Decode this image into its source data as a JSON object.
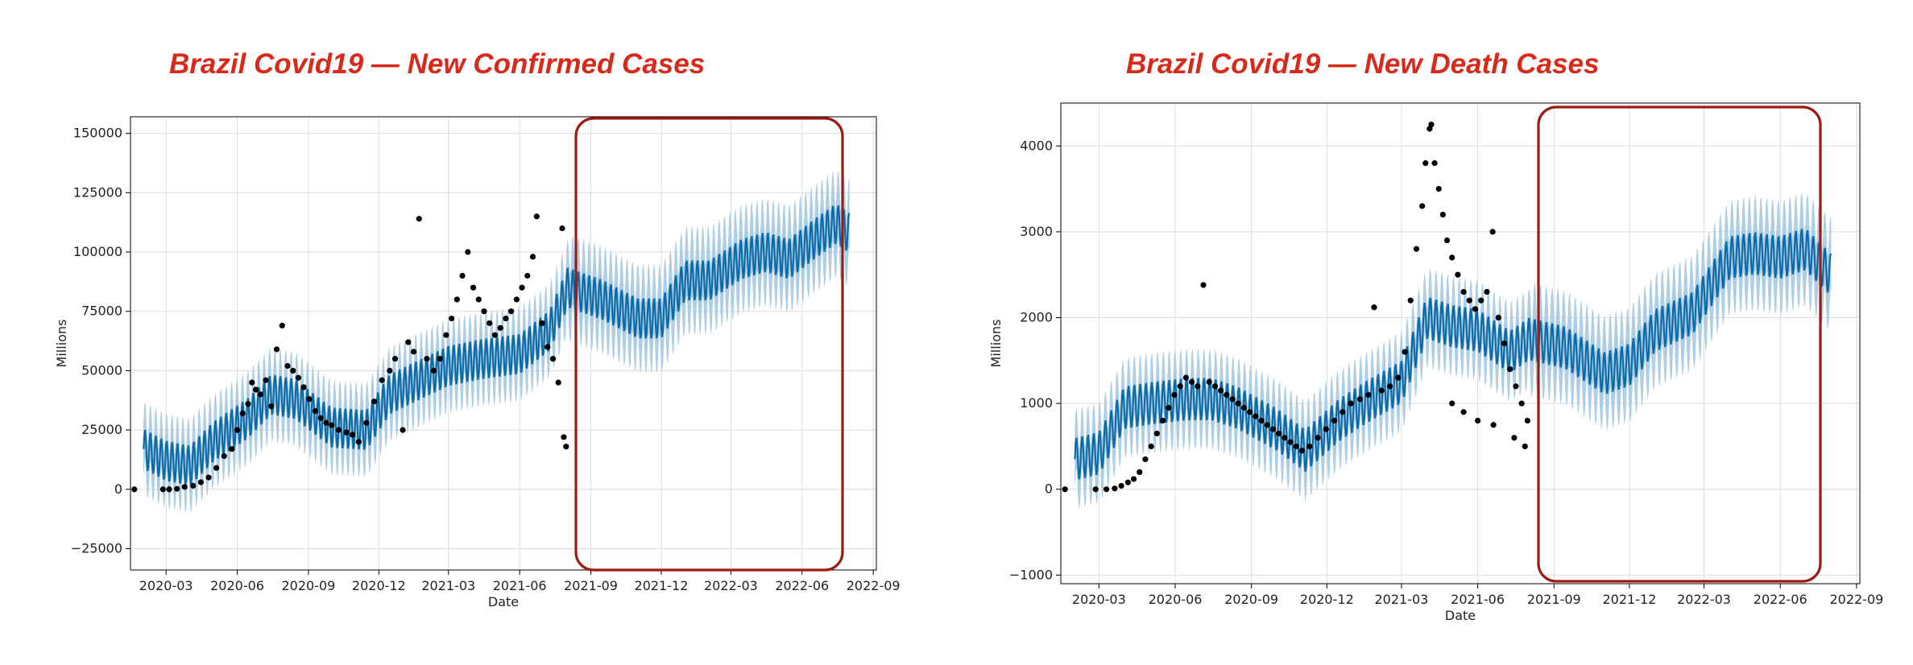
{
  "colors": {
    "title": "#d72a1a",
    "band": "#a9cbe6",
    "line": "#0b6aa6",
    "points": "#000000",
    "highlight": "#9b1c12",
    "grid": "#dcdcdc"
  },
  "chart_data": [
    {
      "type": "line",
      "title": "Brazil Covid19 — New Confirmed Cases",
      "xlabel": "Date",
      "ylabel": "Millions",
      "x_range": [
        "2020-01-15",
        "2022-09-05"
      ],
      "ylim": [
        -34000,
        157000
      ],
      "xticks": [
        "2020-03",
        "2020-06",
        "2020-09",
        "2020-12",
        "2021-03",
        "2021-06",
        "2021-09",
        "2021-12",
        "2022-03",
        "2022-06",
        "2022-09"
      ],
      "yticks": [
        -25000,
        0,
        25000,
        50000,
        75000,
        100000,
        125000,
        150000
      ],
      "ytick_labels": [
        "−25000",
        "0",
        "25000",
        "50000",
        "75000",
        "100000",
        "125000",
        "150000"
      ],
      "grid": true,
      "forecast_region": [
        "2021-08-02",
        "2022-08-01"
      ],
      "trend": [
        {
          "date": "2020-02-01",
          "value": 17000
        },
        {
          "date": "2020-03-01",
          "value": 12000
        },
        {
          "date": "2020-04-01",
          "value": 10000
        },
        {
          "date": "2020-05-01",
          "value": 20000
        },
        {
          "date": "2020-06-15",
          "value": 30000
        },
        {
          "date": "2020-07-15",
          "value": 40000
        },
        {
          "date": "2020-08-15",
          "value": 38000
        },
        {
          "date": "2020-10-01",
          "value": 26000
        },
        {
          "date": "2020-11-15",
          "value": 25000
        },
        {
          "date": "2020-12-15",
          "value": 40000
        },
        {
          "date": "2021-01-15",
          "value": 45000
        },
        {
          "date": "2021-03-01",
          "value": 52000
        },
        {
          "date": "2021-04-15",
          "value": 55000
        },
        {
          "date": "2021-06-01",
          "value": 57000
        },
        {
          "date": "2021-07-10",
          "value": 67000
        },
        {
          "date": "2021-08-02",
          "value": 85000
        },
        {
          "date": "2021-09-15",
          "value": 80000
        },
        {
          "date": "2021-11-01",
          "value": 72000
        },
        {
          "date": "2021-12-01",
          "value": 72000
        },
        {
          "date": "2022-01-01",
          "value": 88000
        },
        {
          "date": "2022-02-01",
          "value": 88000
        },
        {
          "date": "2022-03-15",
          "value": 97000
        },
        {
          "date": "2022-04-15",
          "value": 100000
        },
        {
          "date": "2022-05-15",
          "value": 97000
        },
        {
          "date": "2022-06-15",
          "value": 105000
        },
        {
          "date": "2022-07-15",
          "value": 112000
        },
        {
          "date": "2022-08-01",
          "value": 108000
        }
      ],
      "observed": [
        {
          "date": "2020-01-20",
          "value": 0
        },
        {
          "date": "2020-02-26",
          "value": 0
        },
        {
          "date": "2020-03-05",
          "value": 0
        },
        {
          "date": "2020-03-15",
          "value": 200
        },
        {
          "date": "2020-03-25",
          "value": 1000
        },
        {
          "date": "2020-04-05",
          "value": 1500
        },
        {
          "date": "2020-04-15",
          "value": 3000
        },
        {
          "date": "2020-04-25",
          "value": 5000
        },
        {
          "date": "2020-05-05",
          "value": 9000
        },
        {
          "date": "2020-05-15",
          "value": 14000
        },
        {
          "date": "2020-05-25",
          "value": 17000
        },
        {
          "date": "2020-06-01",
          "value": 25000
        },
        {
          "date": "2020-06-08",
          "value": 32000
        },
        {
          "date": "2020-06-15",
          "value": 36000
        },
        {
          "date": "2020-06-20",
          "value": 45000
        },
        {
          "date": "2020-06-25",
          "value": 42000
        },
        {
          "date": "2020-07-01",
          "value": 40000
        },
        {
          "date": "2020-07-08",
          "value": 46000
        },
        {
          "date": "2020-07-15",
          "value": 35000
        },
        {
          "date": "2020-07-22",
          "value": 59000
        },
        {
          "date": "2020-07-29",
          "value": 69000
        },
        {
          "date": "2020-08-05",
          "value": 52000
        },
        {
          "date": "2020-08-12",
          "value": 50000
        },
        {
          "date": "2020-08-19",
          "value": 47000
        },
        {
          "date": "2020-08-26",
          "value": 43000
        },
        {
          "date": "2020-09-02",
          "value": 38000
        },
        {
          "date": "2020-09-10",
          "value": 33000
        },
        {
          "date": "2020-09-17",
          "value": 30000
        },
        {
          "date": "2020-09-24",
          "value": 28000
        },
        {
          "date": "2020-10-01",
          "value": 27000
        },
        {
          "date": "2020-10-10",
          "value": 25000
        },
        {
          "date": "2020-10-20",
          "value": 24000
        },
        {
          "date": "2020-10-28",
          "value": 23000
        },
        {
          "date": "2020-11-05",
          "value": 20000
        },
        {
          "date": "2020-11-15",
          "value": 28000
        },
        {
          "date": "2020-11-25",
          "value": 37000
        },
        {
          "date": "2020-12-05",
          "value": 46000
        },
        {
          "date": "2020-12-15",
          "value": 50000
        },
        {
          "date": "2020-12-22",
          "value": 55000
        },
        {
          "date": "2021-01-01",
          "value": 25000
        },
        {
          "date": "2021-01-08",
          "value": 62000
        },
        {
          "date": "2021-01-15",
          "value": 58000
        },
        {
          "date": "2021-01-22",
          "value": 114000
        },
        {
          "date": "2021-02-01",
          "value": 55000
        },
        {
          "date": "2021-02-10",
          "value": 50000
        },
        {
          "date": "2021-02-18",
          "value": 55000
        },
        {
          "date": "2021-02-26",
          "value": 65000
        },
        {
          "date": "2021-03-05",
          "value": 72000
        },
        {
          "date": "2021-03-12",
          "value": 80000
        },
        {
          "date": "2021-03-19",
          "value": 90000
        },
        {
          "date": "2021-03-26",
          "value": 100000
        },
        {
          "date": "2021-04-02",
          "value": 85000
        },
        {
          "date": "2021-04-09",
          "value": 80000
        },
        {
          "date": "2021-04-16",
          "value": 75000
        },
        {
          "date": "2021-04-23",
          "value": 70000
        },
        {
          "date": "2021-04-30",
          "value": 65000
        },
        {
          "date": "2021-05-07",
          "value": 68000
        },
        {
          "date": "2021-05-14",
          "value": 72000
        },
        {
          "date": "2021-05-21",
          "value": 75000
        },
        {
          "date": "2021-05-28",
          "value": 80000
        },
        {
          "date": "2021-06-04",
          "value": 85000
        },
        {
          "date": "2021-06-11",
          "value": 90000
        },
        {
          "date": "2021-06-18",
          "value": 98000
        },
        {
          "date": "2021-06-23",
          "value": 115000
        },
        {
          "date": "2021-06-30",
          "value": 70000
        },
        {
          "date": "2021-07-07",
          "value": 60000
        },
        {
          "date": "2021-07-14",
          "value": 55000
        },
        {
          "date": "2021-07-21",
          "value": 45000
        },
        {
          "date": "2021-07-26",
          "value": 110000
        },
        {
          "date": "2021-07-28",
          "value": 22000
        },
        {
          "date": "2021-07-31",
          "value": 18000
        }
      ]
    },
    {
      "type": "line",
      "title": "Brazil Covid19 — New Death Cases",
      "xlabel": "Date",
      "ylabel": "Millions",
      "x_range": [
        "2020-01-15",
        "2022-09-05"
      ],
      "ylim": [
        -1100,
        4500
      ],
      "xticks": [
        "2020-03",
        "2020-06",
        "2020-09",
        "2020-12",
        "2021-03",
        "2021-06",
        "2021-09",
        "2021-12",
        "2022-03",
        "2022-06",
        "2022-09"
      ],
      "yticks": [
        -1000,
        0,
        1000,
        2000,
        3000,
        4000
      ],
      "ytick_labels": [
        "−1000",
        "0",
        "1000",
        "2000",
        "3000",
        "4000"
      ],
      "grid": true,
      "forecast_region": [
        "2021-08-02",
        "2022-08-01"
      ],
      "trend": [
        {
          "date": "2020-02-01",
          "value": 350
        },
        {
          "date": "2020-03-01",
          "value": 420
        },
        {
          "date": "2020-04-01",
          "value": 950
        },
        {
          "date": "2020-05-01",
          "value": 1000
        },
        {
          "date": "2020-06-15",
          "value": 1050
        },
        {
          "date": "2020-07-15",
          "value": 1050
        },
        {
          "date": "2020-08-15",
          "value": 950
        },
        {
          "date": "2020-10-01",
          "value": 700
        },
        {
          "date": "2020-11-05",
          "value": 450
        },
        {
          "date": "2020-12-15",
          "value": 800
        },
        {
          "date": "2021-01-15",
          "value": 1000
        },
        {
          "date": "2021-03-01",
          "value": 1250
        },
        {
          "date": "2021-04-01",
          "value": 2000
        },
        {
          "date": "2021-05-01",
          "value": 1900
        },
        {
          "date": "2021-06-01",
          "value": 1850
        },
        {
          "date": "2021-07-10",
          "value": 1600
        },
        {
          "date": "2021-08-02",
          "value": 1750
        },
        {
          "date": "2021-09-15",
          "value": 1650
        },
        {
          "date": "2021-11-01",
          "value": 1350
        },
        {
          "date": "2021-12-01",
          "value": 1450
        },
        {
          "date": "2022-01-01",
          "value": 1850
        },
        {
          "date": "2022-02-15",
          "value": 2050
        },
        {
          "date": "2022-04-01",
          "value": 2700
        },
        {
          "date": "2022-05-01",
          "value": 2750
        },
        {
          "date": "2022-06-01",
          "value": 2700
        },
        {
          "date": "2022-07-01",
          "value": 2800
        },
        {
          "date": "2022-08-01",
          "value": 2500
        }
      ],
      "observed": [
        {
          "date": "2020-01-20",
          "value": 0
        },
        {
          "date": "2020-02-26",
          "value": 0
        },
        {
          "date": "2020-03-10",
          "value": 0
        },
        {
          "date": "2020-03-20",
          "value": 10
        },
        {
          "date": "2020-03-28",
          "value": 40
        },
        {
          "date": "2020-04-05",
          "value": 80
        },
        {
          "date": "2020-04-12",
          "value": 120
        },
        {
          "date": "2020-04-19",
          "value": 200
        },
        {
          "date": "2020-04-26",
          "value": 350
        },
        {
          "date": "2020-05-03",
          "value": 500
        },
        {
          "date": "2020-05-10",
          "value": 650
        },
        {
          "date": "2020-05-17",
          "value": 800
        },
        {
          "date": "2020-05-24",
          "value": 950
        },
        {
          "date": "2020-05-31",
          "value": 1100
        },
        {
          "date": "2020-06-07",
          "value": 1200
        },
        {
          "date": "2020-06-14",
          "value": 1300
        },
        {
          "date": "2020-06-21",
          "value": 1250
        },
        {
          "date": "2020-06-28",
          "value": 1200
        },
        {
          "date": "2020-07-05",
          "value": 2380
        },
        {
          "date": "2020-07-12",
          "value": 1250
        },
        {
          "date": "2020-07-19",
          "value": 1200
        },
        {
          "date": "2020-07-26",
          "value": 1150
        },
        {
          "date": "2020-08-02",
          "value": 1100
        },
        {
          "date": "2020-08-09",
          "value": 1050
        },
        {
          "date": "2020-08-16",
          "value": 1000
        },
        {
          "date": "2020-08-23",
          "value": 950
        },
        {
          "date": "2020-08-30",
          "value": 900
        },
        {
          "date": "2020-09-06",
          "value": 850
        },
        {
          "date": "2020-09-13",
          "value": 800
        },
        {
          "date": "2020-09-20",
          "value": 750
        },
        {
          "date": "2020-09-27",
          "value": 700
        },
        {
          "date": "2020-10-04",
          "value": 650
        },
        {
          "date": "2020-10-11",
          "value": 600
        },
        {
          "date": "2020-10-18",
          "value": 550
        },
        {
          "date": "2020-10-25",
          "value": 500
        },
        {
          "date": "2020-11-01",
          "value": 450
        },
        {
          "date": "2020-11-10",
          "value": 500
        },
        {
          "date": "2020-11-20",
          "value": 600
        },
        {
          "date": "2020-11-30",
          "value": 700
        },
        {
          "date": "2020-12-10",
          "value": 800
        },
        {
          "date": "2020-12-20",
          "value": 900
        },
        {
          "date": "2020-12-30",
          "value": 1000
        },
        {
          "date": "2021-01-10",
          "value": 1050
        },
        {
          "date": "2021-01-20",
          "value": 1100
        },
        {
          "date": "2021-01-27",
          "value": 2120
        },
        {
          "date": "2021-02-05",
          "value": 1150
        },
        {
          "date": "2021-02-15",
          "value": 1200
        },
        {
          "date": "2021-02-25",
          "value": 1300
        },
        {
          "date": "2021-03-05",
          "value": 1600
        },
        {
          "date": "2021-03-12",
          "value": 2200
        },
        {
          "date": "2021-03-19",
          "value": 2800
        },
        {
          "date": "2021-03-26",
          "value": 3300
        },
        {
          "date": "2021-03-30",
          "value": 3800
        },
        {
          "date": "2021-04-04",
          "value": 4200
        },
        {
          "date": "2021-04-06",
          "value": 4250
        },
        {
          "date": "2021-04-10",
          "value": 3800
        },
        {
          "date": "2021-04-15",
          "value": 3500
        },
        {
          "date": "2021-04-20",
          "value": 3200
        },
        {
          "date": "2021-04-25",
          "value": 2900
        },
        {
          "date": "2021-05-01",
          "value": 2700
        },
        {
          "date": "2021-05-08",
          "value": 2500
        },
        {
          "date": "2021-05-15",
          "value": 2300
        },
        {
          "date": "2021-05-22",
          "value": 2200
        },
        {
          "date": "2021-05-29",
          "value": 2100
        },
        {
          "date": "2021-06-05",
          "value": 2200
        },
        {
          "date": "2021-06-12",
          "value": 2300
        },
        {
          "date": "2021-06-19",
          "value": 3000
        },
        {
          "date": "2021-06-26",
          "value": 2000
        },
        {
          "date": "2021-07-03",
          "value": 1700
        },
        {
          "date": "2021-07-10",
          "value": 1400
        },
        {
          "date": "2021-07-17",
          "value": 1200
        },
        {
          "date": "2021-07-24",
          "value": 1000
        },
        {
          "date": "2021-07-31",
          "value": 800
        },
        {
          "date": "2021-05-01",
          "value": 1000
        },
        {
          "date": "2021-05-15",
          "value": 900
        },
        {
          "date": "2021-06-01",
          "value": 800
        },
        {
          "date": "2021-06-20",
          "value": 750
        },
        {
          "date": "2021-07-15",
          "value": 600
        },
        {
          "date": "2021-07-28",
          "value": 500
        }
      ]
    }
  ]
}
